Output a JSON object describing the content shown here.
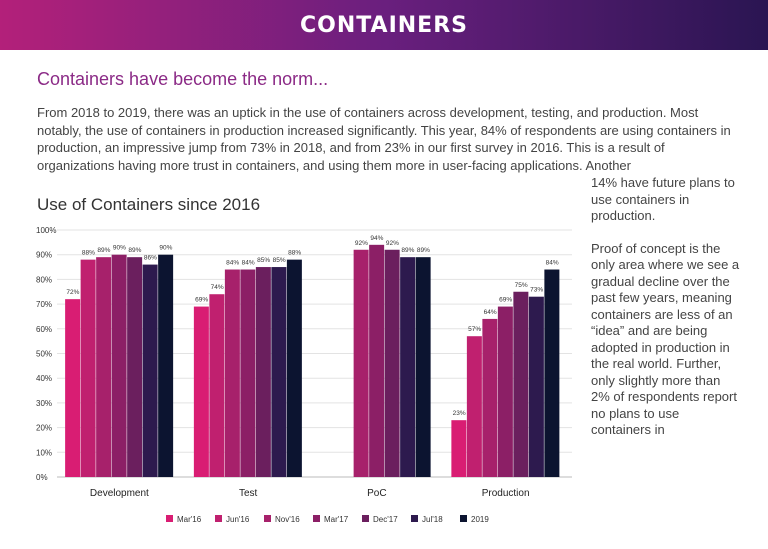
{
  "banner": {
    "title": "CONTAINERS"
  },
  "headline": "Containers have become the norm...",
  "intro": "From 2018 to 2019, there was an uptick in the use of containers across development, testing, and production. Most notably, the use of containers in production increased significantly. This year, 84% of respondents are using containers in production, an impressive jump from 73% in 2018, and from 23% in our first survey in 2016. This is a result of organizations having more trust in containers, and using them more in user-facing applications. Another",
  "side_text": {
    "p1": "14% have future plans to use containers in production.",
    "p2": "Proof of concept is the only area where we see a gradual decline over the past few years, meaning containers are less of an “idea” and are being adopted in production in the real world. Further, only slightly more than 2% of respondents report no plans to use containers in"
  },
  "chart_data": {
    "type": "bar",
    "title": "Use of Containers since 2016",
    "xlabel": "",
    "ylabel": "",
    "ylim": [
      0,
      100
    ],
    "y_ticks": [
      "0%",
      "10%",
      "20%",
      "30%",
      "40%",
      "50%",
      "60%",
      "70%",
      "80%",
      "90%",
      "100%"
    ],
    "grid": true,
    "legend_position": "bottom",
    "categories": [
      "Development",
      "Test",
      "PoC",
      "Production"
    ],
    "series": [
      {
        "name": "Mar'16",
        "color": "#d91d73",
        "values": [
          72,
          69,
          null,
          23
        ],
        "labels": [
          "72%",
          "69%",
          "",
          "23%"
        ]
      },
      {
        "name": "Jun'16",
        "color": "#c0206f",
        "values": [
          88,
          74,
          null,
          57
        ],
        "labels": [
          "88%",
          "74%",
          "",
          "57%"
        ]
      },
      {
        "name": "Nov'16",
        "color": "#a7216b",
        "values": [
          89,
          84,
          92,
          64
        ],
        "labels": [
          "89%",
          "84%",
          "92%",
          "64%"
        ]
      },
      {
        "name": "Mar'17",
        "color": "#8c1f66",
        "values": [
          90,
          84,
          94,
          69
        ],
        "labels": [
          "90%",
          "84%",
          "94%",
          "69%"
        ]
      },
      {
        "name": "Dec'17",
        "color": "#6b1f5e",
        "values": [
          89,
          85,
          92,
          75
        ],
        "labels": [
          "89%",
          "85%",
          "92%",
          "75%"
        ]
      },
      {
        "name": "Jul'18",
        "color": "#2d1a4e",
        "values": [
          86,
          85,
          89,
          73
        ],
        "labels": [
          "86%",
          "85%",
          "89%",
          "73%"
        ]
      },
      {
        "name": "2019",
        "color": "#0c1430",
        "values": [
          90,
          88,
          89,
          84
        ],
        "labels": [
          "90%",
          "88%",
          "89%",
          "84%"
        ]
      }
    ]
  }
}
